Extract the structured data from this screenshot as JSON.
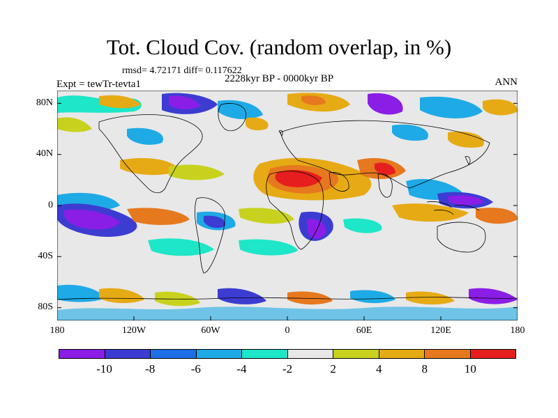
{
  "title": "Tot. Cloud Cov. (random overlap, in %)",
  "stats": "rmsd= 4.72171  diff= 0.117622",
  "period": "2228kyr BP - 0000kyr BP",
  "expt": "Expt = tewTr-tevta1",
  "season": "ANN",
  "lat_labels": [
    "80N",
    "40N",
    "0",
    "40S",
    "80S"
  ],
  "lon_labels": [
    "180",
    "120W",
    "60W",
    "0",
    "60E",
    "120E",
    "180"
  ],
  "colorbar": {
    "colors": [
      "#8a1ee6",
      "#3c3cd2",
      "#1e6ee6",
      "#1eaae6",
      "#1ee6c8",
      "#e8e8e8",
      "#c8d21e",
      "#e6aa14",
      "#e6781e",
      "#e61e1e"
    ],
    "labels": [
      "-10",
      "-8",
      "-6",
      "-4",
      "-2",
      "2",
      "4",
      "8",
      "10"
    ]
  }
}
